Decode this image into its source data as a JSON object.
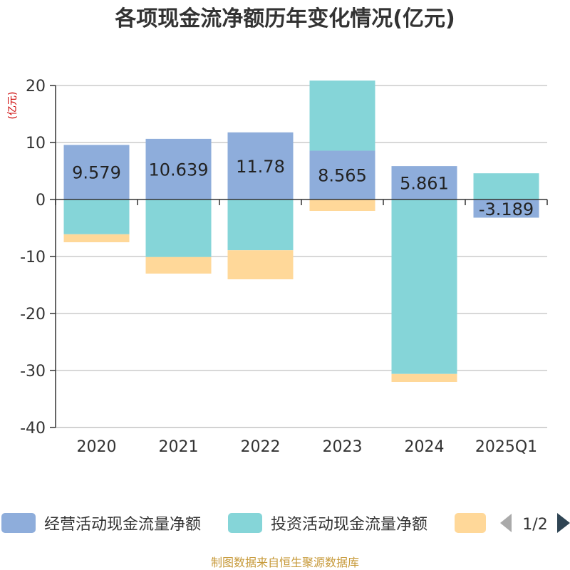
{
  "title": "各项现金流净额历年变化情况(亿元)",
  "unit_label": "(亿元)",
  "source": "制图数据来自恒生聚源数据库",
  "pagination": "1/2",
  "colors": {
    "operating": "#8eaddb",
    "investing": "#85d5d8",
    "financing": "#ffd899",
    "unit_text": "#cc0000",
    "source_text": "#c79a3a",
    "axis": "#333333",
    "grid": "#cccccc",
    "nav_prev": "#aaaaaa",
    "nav_next": "#2f4554"
  },
  "legend": {
    "items": [
      {
        "label": "经营活动现金流量净额",
        "color_key": "operating"
      },
      {
        "label": "投资活动现金流量净额",
        "color_key": "investing"
      },
      {
        "label": "",
        "color_key": "financing"
      }
    ],
    "prev_icon": "triangle-left-icon",
    "next_icon": "triangle-right-icon"
  },
  "chart_data": {
    "type": "bar",
    "stacked": true,
    "categories": [
      "2020",
      "2021",
      "2022",
      "2023",
      "2024",
      "2025Q1"
    ],
    "ylim": [
      -40,
      20
    ],
    "yticks": [
      20,
      10,
      0,
      -10,
      -20,
      -30,
      -40
    ],
    "grid": true,
    "legend_position": "bottom",
    "series": [
      {
        "name": "经营活动现金流量净额",
        "color_key": "operating",
        "values": [
          9.579,
          10.639,
          11.78,
          8.565,
          5.861,
          -3.189
        ],
        "labels": [
          "9.579",
          "10.639",
          "11.78",
          "8.565",
          "5.861",
          "-3.189"
        ]
      },
      {
        "name": "投资活动现金流量净额",
        "color_key": "investing",
        "values": [
          -6.1,
          -10.1,
          -8.9,
          12.3,
          -30.6,
          4.6
        ]
      },
      {
        "series_index": 2,
        "color_key": "financing",
        "values": [
          -1.4,
          -2.9,
          -5.1,
          -2.0,
          -1.4,
          0
        ]
      }
    ]
  }
}
